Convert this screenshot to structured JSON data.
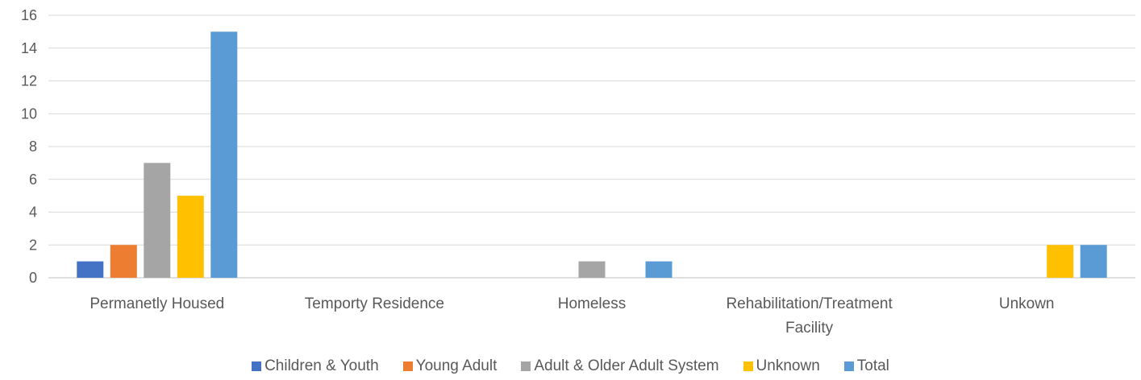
{
  "chart_data": {
    "type": "bar",
    "title": "",
    "xlabel": "",
    "ylabel": "",
    "ylim": [
      0,
      16
    ],
    "yticks": [
      0,
      2,
      4,
      6,
      8,
      10,
      12,
      14,
      16
    ],
    "grid": true,
    "legend_position": "bottom",
    "categories": [
      [
        "Permanetly Housed"
      ],
      [
        "Temporty Residence"
      ],
      [
        "Homeless"
      ],
      [
        "Rehabilitation/Treatment",
        "Facility"
      ],
      [
        "Unkown"
      ]
    ],
    "series": [
      {
        "name": "Children & Youth",
        "color": "#4472C4",
        "values": [
          1,
          null,
          null,
          null,
          null
        ]
      },
      {
        "name": "Young Adult",
        "color": "#ED7D31",
        "values": [
          2,
          null,
          null,
          null,
          null
        ]
      },
      {
        "name": "Adult & Older Adult System",
        "color": "#A5A5A5",
        "values": [
          7,
          null,
          1,
          null,
          null
        ]
      },
      {
        "name": "Unknown",
        "color": "#FFC000",
        "values": [
          5,
          null,
          null,
          null,
          2
        ]
      },
      {
        "name": "Total",
        "color": "#5B9BD5",
        "values": [
          15,
          null,
          1,
          null,
          2
        ]
      }
    ]
  }
}
